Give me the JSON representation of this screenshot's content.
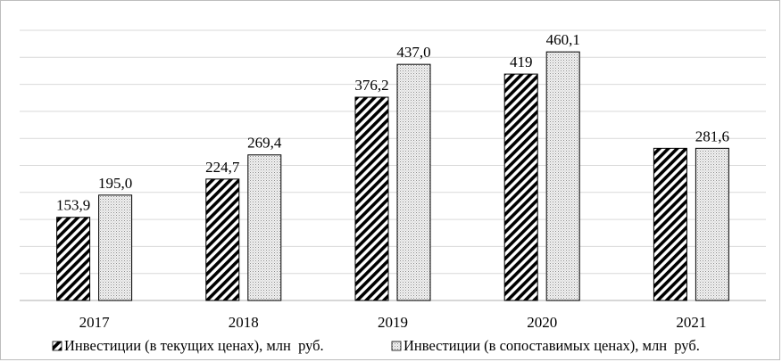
{
  "chart_data": {
    "type": "bar",
    "title": "",
    "xlabel": "",
    "ylabel": "",
    "ylim": [
      0,
      500
    ],
    "grid": true,
    "legend_position": "bottom",
    "categories": [
      "2017",
      "2018",
      "2019",
      "2020",
      "2021"
    ],
    "series": [
      {
        "name": "Инвестиции (в текущих ценах), млн  руб.",
        "values": [
          153.9,
          224.7,
          376.2,
          419,
          281.6
        ],
        "labels": [
          "153,9",
          "224,7",
          "376,2",
          "419",
          ""
        ],
        "pattern": "diagonal-hatch",
        "color": "#000000"
      },
      {
        "name": "Инвестиции (в сопоставимых ценах), млн  руб.",
        "values": [
          195.0,
          269.4,
          437.0,
          460.1,
          281.6
        ],
        "labels": [
          "195,0",
          "269,4",
          "437,0",
          "460,1",
          "281,6"
        ],
        "pattern": "dotted",
        "color": "#8c8c8c"
      }
    ]
  }
}
